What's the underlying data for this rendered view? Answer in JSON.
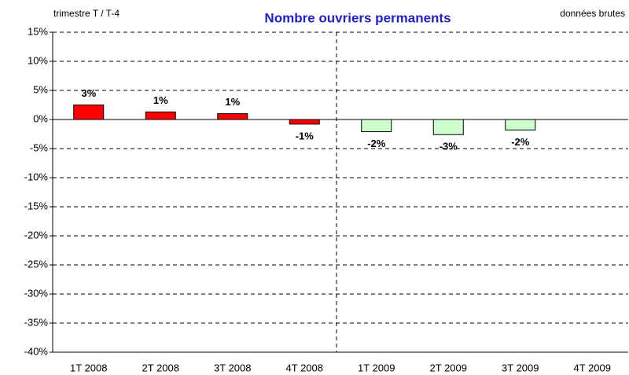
{
  "chart_data": {
    "type": "bar",
    "title": "Nombre ouvriers permanents",
    "subtitle": "trimestre T / T-4",
    "annotation": "données brutes",
    "categories": [
      "1T 2008",
      "2T 2008",
      "3T 2008",
      "4T 2008",
      "1T 2009",
      "2T 2009",
      "3T 2009",
      "4T 2009"
    ],
    "values": [
      2.5,
      1.3,
      1.0,
      -0.8,
      -2.1,
      -2.6,
      -1.8,
      null
    ],
    "value_labels": [
      "3%",
      "1%",
      "1%",
      "-1%",
      "-2%",
      "-3%",
      "-2%",
      null
    ],
    "colors": [
      "#ff0000",
      "#ff0000",
      "#ff0000",
      "#ff0000",
      "#ccffcc",
      "#ccffcc",
      "#ccffcc",
      "#ccffcc"
    ],
    "ylim": [
      -40,
      15
    ],
    "yticks": [
      {
        "value": -40,
        "label": "-40%"
      },
      {
        "value": -35,
        "label": "-35%"
      },
      {
        "value": -30,
        "label": "-30%"
      },
      {
        "value": -25,
        "label": "-25%"
      },
      {
        "value": -20,
        "label": "-20%"
      },
      {
        "value": -15,
        "label": "-15%"
      },
      {
        "value": -10,
        "label": "-10%"
      },
      {
        "value": -5,
        "label": "-5%"
      },
      {
        "value": 0,
        "label": "0%"
      },
      {
        "value": 5,
        "label": "5%"
      },
      {
        "value": 10,
        "label": "10%"
      },
      {
        "value": 15,
        "label": "15%"
      }
    ],
    "grid": true
  }
}
